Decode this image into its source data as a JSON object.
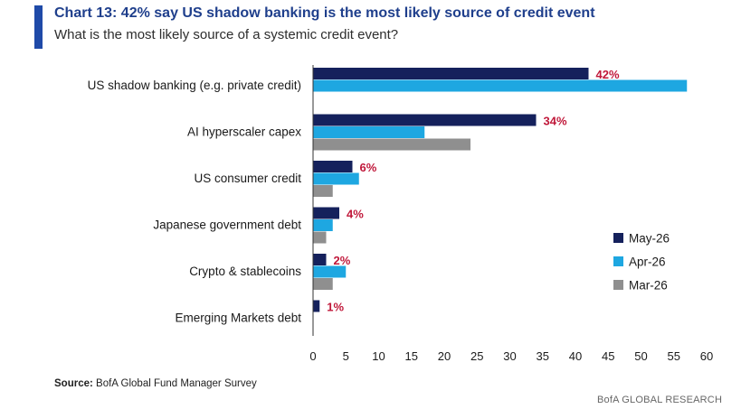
{
  "header": {
    "title": "Chart 13: 42% say US shadow banking is the most likely source of credit event",
    "subtitle": "What is the most likely source of a systemic credit event?"
  },
  "footer": {
    "source_label": "Source:",
    "source_text": "BofA Global Fund Manager Survey",
    "brand": "BofA GLOBAL RESEARCH"
  },
  "chart_data": {
    "type": "bar",
    "orientation": "horizontal",
    "title": "",
    "xlabel": "",
    "ylabel": "",
    "xlim": [
      0,
      60
    ],
    "xticks": [
      0,
      5,
      10,
      15,
      20,
      25,
      30,
      35,
      40,
      45,
      50,
      55,
      60
    ],
    "grid": false,
    "legend_position": "right",
    "categories": [
      "US shadow banking (e.g. private credit)",
      "AI hyperscaler capex",
      "US consumer credit",
      "Japanese government debt",
      "Crypto & stablecoins",
      "Emerging Markets debt"
    ],
    "series": [
      {
        "name": "May-26",
        "color": "#15215c",
        "values": [
          42,
          34,
          6,
          4,
          2,
          1
        ]
      },
      {
        "name": "Apr-26",
        "color": "#1ea7e1",
        "values": [
          57,
          17,
          7,
          3,
          5,
          null
        ]
      },
      {
        "name": "Mar-26",
        "color": "#8f8f8f",
        "values": [
          null,
          24,
          3,
          2,
          3,
          null
        ]
      }
    ],
    "data_labels": [
      "42%",
      "34%",
      "6%",
      "4%",
      "2%",
      "1%"
    ],
    "data_label_color": "#c0183a"
  }
}
